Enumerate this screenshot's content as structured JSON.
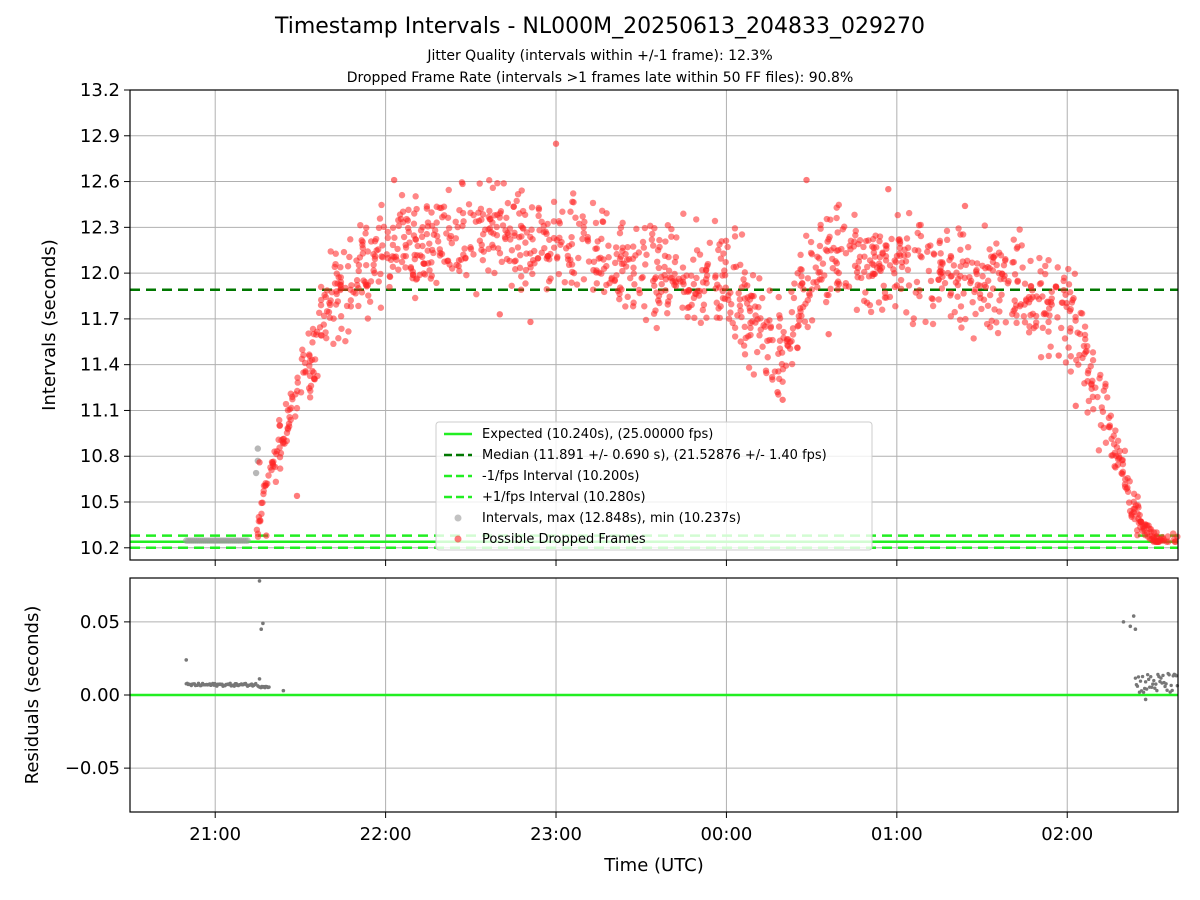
{
  "title": "Timestamp Intervals - NL000M_20250613_204833_029270",
  "subtitle_1": "Jitter Quality (intervals within +/-1 frame): 12.3%",
  "subtitle_2": "Dropped Frame Rate (intervals >1 frames late within 50 FF files): 90.8%",
  "colors": {
    "expected": "#22ee22",
    "median": "#007700",
    "fps_band": "#22ee22",
    "interval_points": "#999999",
    "dropped_points": "#ff2222",
    "residual_points": "#777777"
  },
  "chart_data": [
    {
      "type": "scatter",
      "panel": "top",
      "ylabel": "Intervals (seconds)",
      "ylim": [
        10.12,
        13.2
      ],
      "y_ticks": [
        "10.2",
        "10.5",
        "10.8",
        "11.1",
        "11.4",
        "11.7",
        "12.0",
        "12.3",
        "12.6",
        "12.9",
        "13.2"
      ],
      "x_range_hours": [
        20.5,
        26.65
      ],
      "grid": true,
      "legend_location": "lower-center",
      "reference_lines": [
        {
          "name": "Expected (10.240s), (25.00000 fps)",
          "y": 10.24,
          "style": "solid"
        },
        {
          "name": "Median (11.891 +/- 0.690 s), (21.52876 +/- 1.40 fps)",
          "y": 11.891,
          "style": "dashed"
        },
        {
          "name": "-1/fps Interval (10.200s)",
          "y": 10.2,
          "style": "dashed"
        },
        {
          "name": "+1/fps Interval (10.280s)",
          "y": 10.28,
          "style": "dashed"
        }
      ],
      "series": [
        {
          "name": "Intervals, max (12.848s), min (10.237s)",
          "kind": "gray",
          "trend": [
            [
              20.83,
              10.247
            ],
            [
              21.2,
              10.247
            ],
            [
              21.24,
              10.7
            ],
            [
              21.25,
              10.85
            ]
          ]
        },
        {
          "name": "Possible Dropped Frames",
          "kind": "red",
          "trend": [
            [
              21.24,
              10.25
            ],
            [
              21.3,
              10.65
            ],
            [
              21.5,
              11.25
            ],
            [
              21.7,
              11.85
            ],
            [
              22.0,
              12.15
            ],
            [
              22.5,
              12.25
            ],
            [
              23.0,
              12.2
            ],
            [
              23.5,
              12.0
            ],
            [
              24.0,
              11.95
            ],
            [
              24.2,
              11.7
            ],
            [
              24.3,
              11.45
            ],
            [
              24.45,
              11.85
            ],
            [
              24.6,
              12.1
            ],
            [
              25.0,
              12.05
            ],
            [
              25.5,
              11.95
            ],
            [
              25.8,
              11.9
            ],
            [
              26.0,
              11.75
            ],
            [
              26.1,
              11.5
            ],
            [
              26.2,
              11.15
            ],
            [
              26.3,
              10.8
            ],
            [
              26.4,
              10.42
            ],
            [
              26.5,
              10.25
            ],
            [
              26.65,
              10.25
            ]
          ],
          "outliers": [
            [
              21.26,
              10.76
            ],
            [
              21.3,
              10.28
            ],
            [
              21.48,
              10.54
            ],
            [
              22.05,
              12.61
            ],
            [
              22.67,
              11.73
            ],
            [
              22.85,
              11.68
            ],
            [
              23.0,
              12.848
            ],
            [
              24.3,
              11.22
            ],
            [
              24.33,
              11.17
            ],
            [
              24.47,
              12.61
            ],
            [
              24.95,
              12.55
            ],
            [
              25.4,
              12.44
            ],
            [
              26.05,
              11.13
            ],
            [
              25.95,
              11.46
            ],
            [
              24.6,
              11.6
            ]
          ]
        }
      ]
    },
    {
      "type": "scatter",
      "panel": "bottom",
      "xlabel": "Time (UTC)",
      "ylabel": "Residuals (seconds)",
      "ylim": [
        -0.08,
        0.08
      ],
      "y_ticks": [
        "0.05",
        "0.00",
        "−0.05"
      ],
      "x_ticks": [
        "21:00",
        "22:00",
        "23:00",
        "00:00",
        "01:00",
        "02:00"
      ],
      "x_range_hours": [
        20.5,
        26.65
      ],
      "grid": true,
      "reference_lines": [
        {
          "name": "zero",
          "y": 0.0,
          "style": "solid"
        }
      ],
      "points": [
        [
          20.83,
          0.024
        ],
        [
          21.26,
          0.078
        ],
        [
          21.28,
          0.049
        ],
        [
          21.27,
          0.045
        ],
        [
          21.26,
          0.011
        ],
        [
          21.4,
          0.003
        ],
        [
          26.33,
          0.05
        ],
        [
          26.37,
          0.047
        ],
        [
          26.4,
          0.045
        ],
        [
          26.39,
          0.054
        ],
        [
          26.46,
          -0.003
        ]
      ],
      "clusters": [
        {
          "x_from": 20.83,
          "x_to": 21.24,
          "y": 0.007
        },
        {
          "x_from": 21.25,
          "x_to": 21.32,
          "y": 0.006
        },
        {
          "x_from": 26.4,
          "x_to": 26.65,
          "y": 0.008
        }
      ]
    }
  ],
  "legend": [
    "Expected (10.240s), (25.00000 fps)",
    "Median (11.891 +/- 0.690 s), (21.52876 +/- 1.40 fps)",
    "-1/fps Interval (10.200s)",
    "+1/fps Interval (10.280s)",
    "Intervals, max (12.848s), min (10.237s)",
    "Possible Dropped Frames"
  ]
}
